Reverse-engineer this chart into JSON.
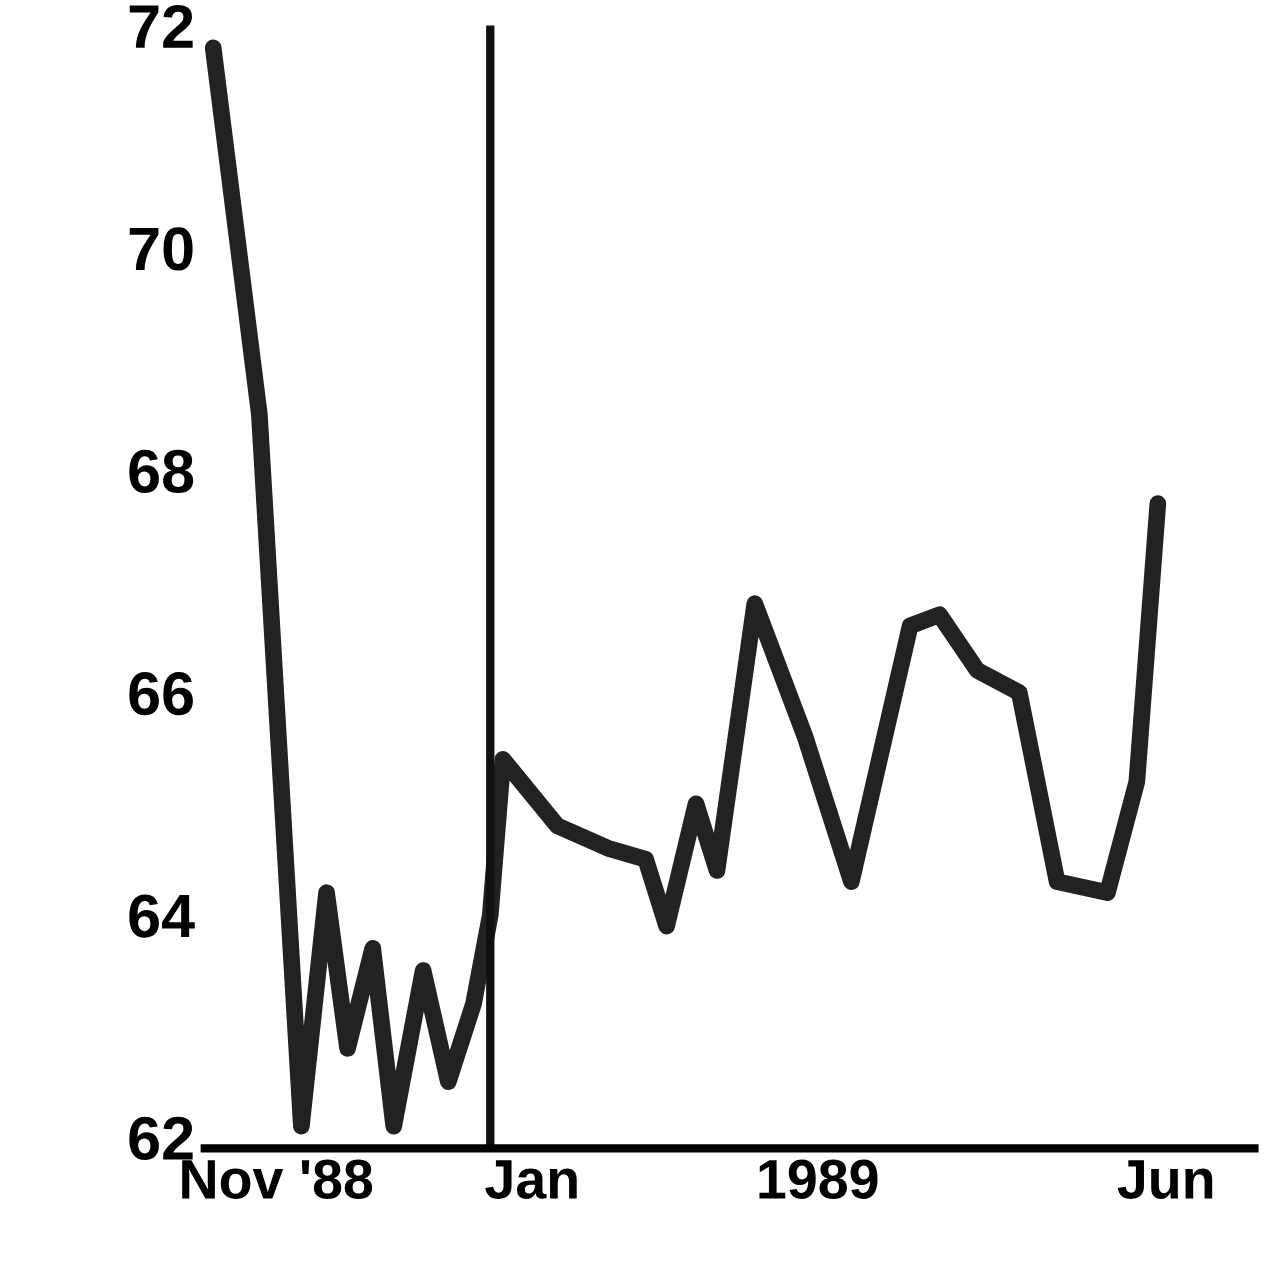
{
  "chart_data": {
    "type": "line",
    "x": [
      "1988-10-17",
      "1988-10-28",
      "1988-11-07",
      "1988-11-13",
      "1988-11-18",
      "1988-11-24",
      "1988-11-29",
      "1988-12-06",
      "1988-12-12",
      "1988-12-18",
      "1988-12-22",
      "1988-12-25",
      "1989-01-07",
      "1989-01-19",
      "1989-01-28",
      "1989-02-02",
      "1989-02-09",
      "1989-02-14",
      "1989-02-23",
      "1989-03-07",
      "1989-03-18",
      "1989-04-01",
      "1989-04-08",
      "1989-04-17",
      "1989-04-27",
      "1989-05-06",
      "1989-05-18",
      "1989-05-25",
      "1989-05-30"
    ],
    "series": [
      {
        "color": "#222222",
        "values": [
          71.8,
          68.5,
          62.1,
          64.2,
          62.8,
          63.7,
          62.1,
          63.5,
          62.5,
          63.2,
          64.0,
          65.4,
          64.8,
          64.6,
          64.5,
          63.9,
          65.0,
          64.4,
          66.8,
          65.6,
          64.3,
          66.6,
          66.7,
          66.2,
          66.0,
          64.3,
          64.2,
          65.2,
          67.7
        ]
      }
    ],
    "xlim": [
      "1988-10-15",
      "1989-06-22"
    ],
    "ylim": [
      61.9,
      72.0
    ],
    "xticks": [
      {
        "value": "1988-11-01",
        "label": "Nov '88"
      },
      {
        "value": "1989-01-01",
        "label": "Jan"
      },
      {
        "value": "1989-03-10",
        "label": "1989"
      },
      {
        "value": "1989-06-01",
        "label": "Jun"
      }
    ],
    "yticks": [
      62,
      64,
      66,
      68,
      70,
      72
    ],
    "ref_lines": [
      {
        "axis": "x",
        "value": "1988-12-22",
        "color": "#111111"
      }
    ],
    "grid": false,
    "legend": false,
    "marker": "none",
    "line_style": "solid"
  }
}
